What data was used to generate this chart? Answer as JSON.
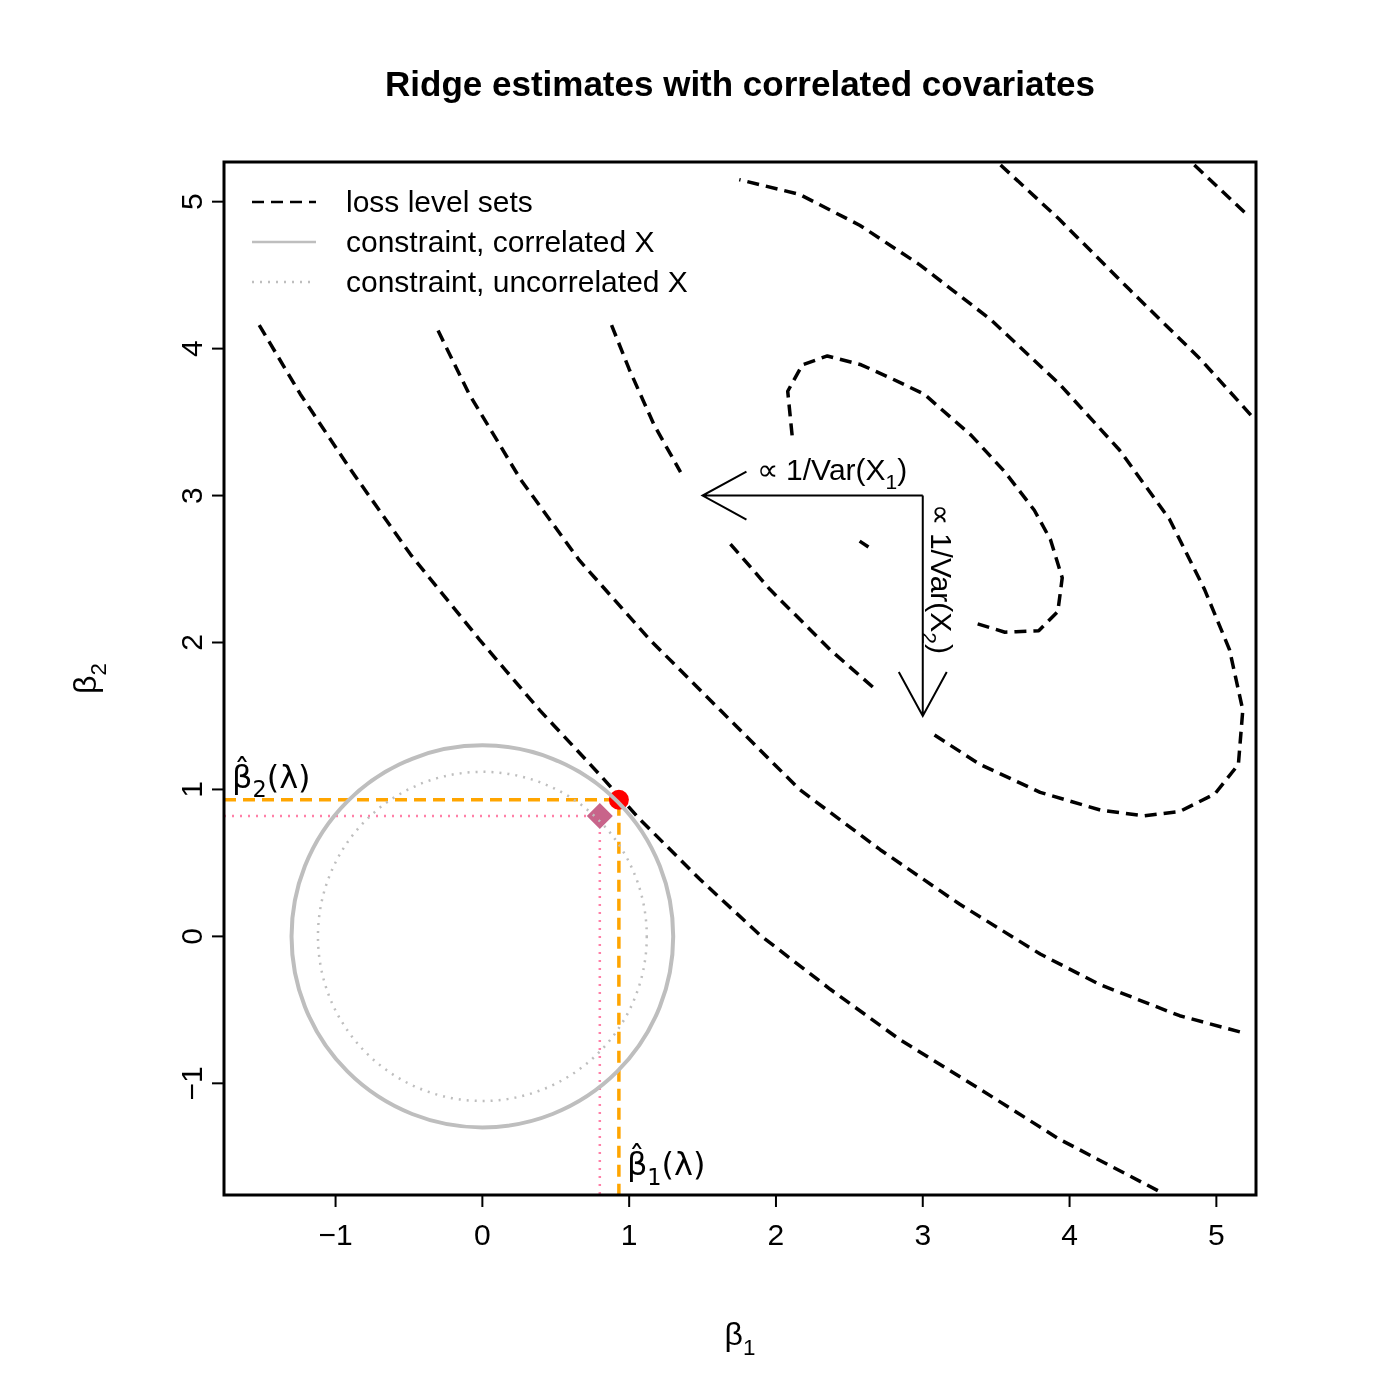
{
  "chart_data": {
    "type": "line",
    "title": "Ridge estimates with correlated covariates",
    "xlabel": "β$_{1}$",
    "ylabel": "β$_{2}$",
    "xlim": [
      -1.76,
      5.27
    ],
    "ylim": [
      -1.76,
      5.27
    ],
    "xticks": [
      -1,
      0,
      1,
      2,
      3,
      4,
      5
    ],
    "yticks": [
      -1,
      0,
      1,
      2,
      3,
      4,
      5
    ],
    "grid": false,
    "legend": "top left",
    "series": [
      {
        "name": "loss level sets",
        "color": "#000000",
        "line_style": "dashed",
        "x": [
          -1.52,
          -1.24,
          -0.9,
          -0.49,
          -0.02,
          0.39,
          0.8,
          1.07,
          1.48,
          1.89,
          2.37,
          2.84,
          3.39,
          3.93,
          4.62
        ],
        "values": [
          4.16,
          3.69,
          3.18,
          2.6,
          2.02,
          1.54,
          1.1,
          0.8,
          0.39,
          0.01,
          -0.36,
          -0.7,
          -1.04,
          -1.38,
          -1.74
        ]
      },
      {
        "name": "constraint, correlated X",
        "color": "#bebebe",
        "line_style": "solid"
      },
      {
        "name": "constraint, uncorrelated X",
        "color": "#bebebe",
        "line_style": "dotted"
      },
      {
        "color": "#000000",
        "line_style": "dashed",
        "x": [
          4.85,
          5.21
        ],
        "values": [
          5.25,
          4.91
        ]
      },
      {
        "color": "#000000",
        "line_style": "dashed",
        "x": [
          5.16,
          4.75,
          4.21,
          3.8,
          3.25,
          2.71,
          2.16,
          1.62,
          1.14,
          0.66,
          0.26,
          -0.09,
          -0.32
        ],
        "values": [
          -0.65,
          -0.54,
          -0.33,
          -0.12,
          0.22,
          0.59,
          1.0,
          1.54,
          2.02,
          2.56,
          3.11,
          3.69,
          4.16
        ]
      },
      {
        "color": "#000000",
        "line_style": "dashed",
        "x": [
          3.53,
          3.93,
          4.41,
          4.89,
          5.26
        ],
        "values": [
          5.25,
          4.88,
          4.4,
          3.93,
          3.52
        ]
      },
      {
        "color": "#000000",
        "line_style": "dashed",
        "x": [
          0.88,
          1.0,
          1.17,
          1.35
        ],
        "values": [
          4.16,
          3.86,
          3.48,
          3.16
        ]
      },
      {
        "color": "#000000",
        "line_style": "dashed",
        "x": [
          1.69,
          1.96,
          2.37,
          2.69
        ],
        "values": [
          2.67,
          2.36,
          1.95,
          1.67
        ]
      },
      {
        "color": "#000000",
        "line_style": "dashed",
        "x": [
          3.08,
          3.39,
          3.8,
          4.21,
          4.51,
          4.75,
          4.99,
          5.15,
          5.18,
          5.09,
          4.92,
          4.68,
          4.34,
          3.93,
          3.46,
          2.98,
          2.57,
          2.16,
          1.75
        ],
        "values": [
          1.37,
          1.17,
          0.98,
          0.86,
          0.82,
          0.85,
          0.97,
          1.17,
          1.54,
          1.95,
          2.36,
          2.84,
          3.31,
          3.76,
          4.2,
          4.57,
          4.84,
          5.05,
          5.15
        ]
      },
      {
        "color": "#000000",
        "line_style": "dashed",
        "x": [
          2.11,
          2.08,
          2.18,
          2.35,
          2.58,
          2.78,
          3.01,
          3.33,
          3.56,
          3.76,
          3.87,
          3.95,
          3.92,
          3.79,
          3.56,
          3.33
        ],
        "values": [
          3.41,
          3.71,
          3.89,
          3.95,
          3.89,
          3.8,
          3.69,
          3.41,
          3.16,
          2.9,
          2.7,
          2.44,
          2.21,
          2.08,
          2.07,
          2.14
        ]
      },
      {
        "color": "#000000",
        "line_style": "dashed",
        "x": [
          2.57,
          2.63
        ],
        "values": [
          2.69,
          2.65
        ]
      },
      {
        "color": "#ffa500",
        "line_style": "dashed",
        "x": [
          -1.76,
          0.93,
          0.93
        ],
        "values": [
          0.93,
          0.93,
          -1.76
        ]
      },
      {
        "color": "#ff80a8",
        "line_style": "dotted",
        "x": [
          -1.76,
          0.8,
          0.8
        ],
        "values": [
          0.82,
          0.82,
          -1.76
        ]
      },
      {
        "type": "scatter",
        "color": "#ff0000",
        "marker": "circle",
        "x": [
          0.93
        ],
        "values": [
          0.93
        ]
      },
      {
        "type": "scatter",
        "color": "#c8648a",
        "marker": "diamond",
        "x": [
          0.8
        ],
        "values": [
          0.82
        ]
      }
    ],
    "annotations": [
      "β̂$_{2}$(λ)",
      "β̂$_{1}$(λ)",
      "∝ 1/Var(X$_{1}$)",
      "∝ 1/Var(X$_{2}$)"
    ]
  }
}
